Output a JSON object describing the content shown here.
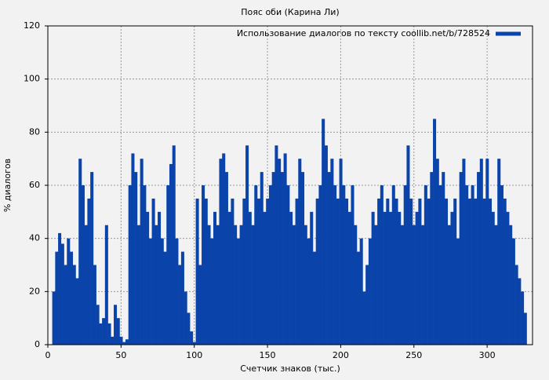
{
  "chart_data": {
    "type": "bar",
    "title": "Пояс оби (Карина Ли)",
    "x_label": "Счетчик знаков (тыс.)",
    "y_label": "% диалогов",
    "xlim": [
      0,
      331
    ],
    "ylim": [
      0,
      120
    ],
    "xticks": [
      0,
      50,
      100,
      150,
      200,
      250,
      300
    ],
    "yticks": [
      0,
      20,
      40,
      60,
      80,
      100,
      120
    ],
    "grid": true,
    "legend": "upper right",
    "x": [
      4,
      6,
      8,
      10,
      12,
      14,
      16,
      18,
      20,
      22,
      24,
      26,
      28,
      30,
      32,
      34,
      36,
      38,
      40,
      42,
      44,
      46,
      48,
      50,
      52,
      54,
      56,
      58,
      60,
      62,
      64,
      66,
      68,
      70,
      72,
      74,
      76,
      78,
      80,
      82,
      84,
      86,
      88,
      90,
      92,
      94,
      96,
      98,
      100,
      102,
      104,
      106,
      108,
      110,
      112,
      114,
      116,
      118,
      120,
      122,
      124,
      126,
      128,
      130,
      132,
      134,
      136,
      138,
      140,
      142,
      144,
      146,
      148,
      150,
      152,
      154,
      156,
      158,
      160,
      162,
      164,
      166,
      168,
      170,
      172,
      174,
      176,
      178,
      180,
      182,
      184,
      186,
      188,
      190,
      192,
      194,
      196,
      198,
      200,
      202,
      204,
      206,
      208,
      210,
      212,
      214,
      216,
      218,
      220,
      222,
      224,
      226,
      228,
      230,
      232,
      234,
      236,
      238,
      240,
      242,
      244,
      246,
      248,
      250,
      252,
      254,
      256,
      258,
      260,
      262,
      264,
      266,
      268,
      270,
      272,
      274,
      276,
      278,
      280,
      282,
      284,
      286,
      288,
      290,
      292,
      294,
      296,
      298,
      300,
      302,
      304,
      306,
      308,
      310,
      312,
      314,
      316,
      318,
      320,
      322,
      324,
      326
    ],
    "series": [
      {
        "name": "Использование диалогов по тексту coollib.net/b/728524",
        "color": "#0a44aa",
        "values": [
          20,
          35,
          42,
          38,
          30,
          40,
          35,
          30,
          25,
          70,
          60,
          45,
          55,
          65,
          30,
          15,
          8,
          10,
          45,
          8,
          3,
          15,
          10,
          3,
          1,
          2,
          60,
          72,
          65,
          45,
          70,
          60,
          50,
          40,
          55,
          45,
          50,
          40,
          35,
          60,
          68,
          75,
          40,
          30,
          35,
          20,
          12,
          5,
          1,
          55,
          30,
          60,
          55,
          45,
          40,
          50,
          45,
          70,
          72,
          65,
          50,
          55,
          45,
          40,
          45,
          55,
          75,
          50,
          45,
          60,
          55,
          65,
          50,
          55,
          60,
          65,
          75,
          70,
          65,
          72,
          60,
          50,
          45,
          55,
          70,
          65,
          45,
          40,
          50,
          35,
          55,
          60,
          85,
          75,
          65,
          70,
          60,
          55,
          70,
          60,
          55,
          50,
          60,
          45,
          35,
          40,
          20,
          30,
          40,
          50,
          45,
          55,
          60,
          50,
          55,
          50,
          60,
          55,
          50,
          45,
          60,
          75,
          55,
          45,
          50,
          55,
          45,
          60,
          55,
          65,
          85,
          70,
          60,
          65,
          55,
          45,
          50,
          55,
          40,
          65,
          70,
          60,
          55,
          60,
          55,
          65,
          70,
          55,
          70,
          55,
          50,
          45,
          70,
          60,
          55,
          50,
          45,
          40,
          30,
          25,
          20,
          12
        ]
      }
    ]
  }
}
